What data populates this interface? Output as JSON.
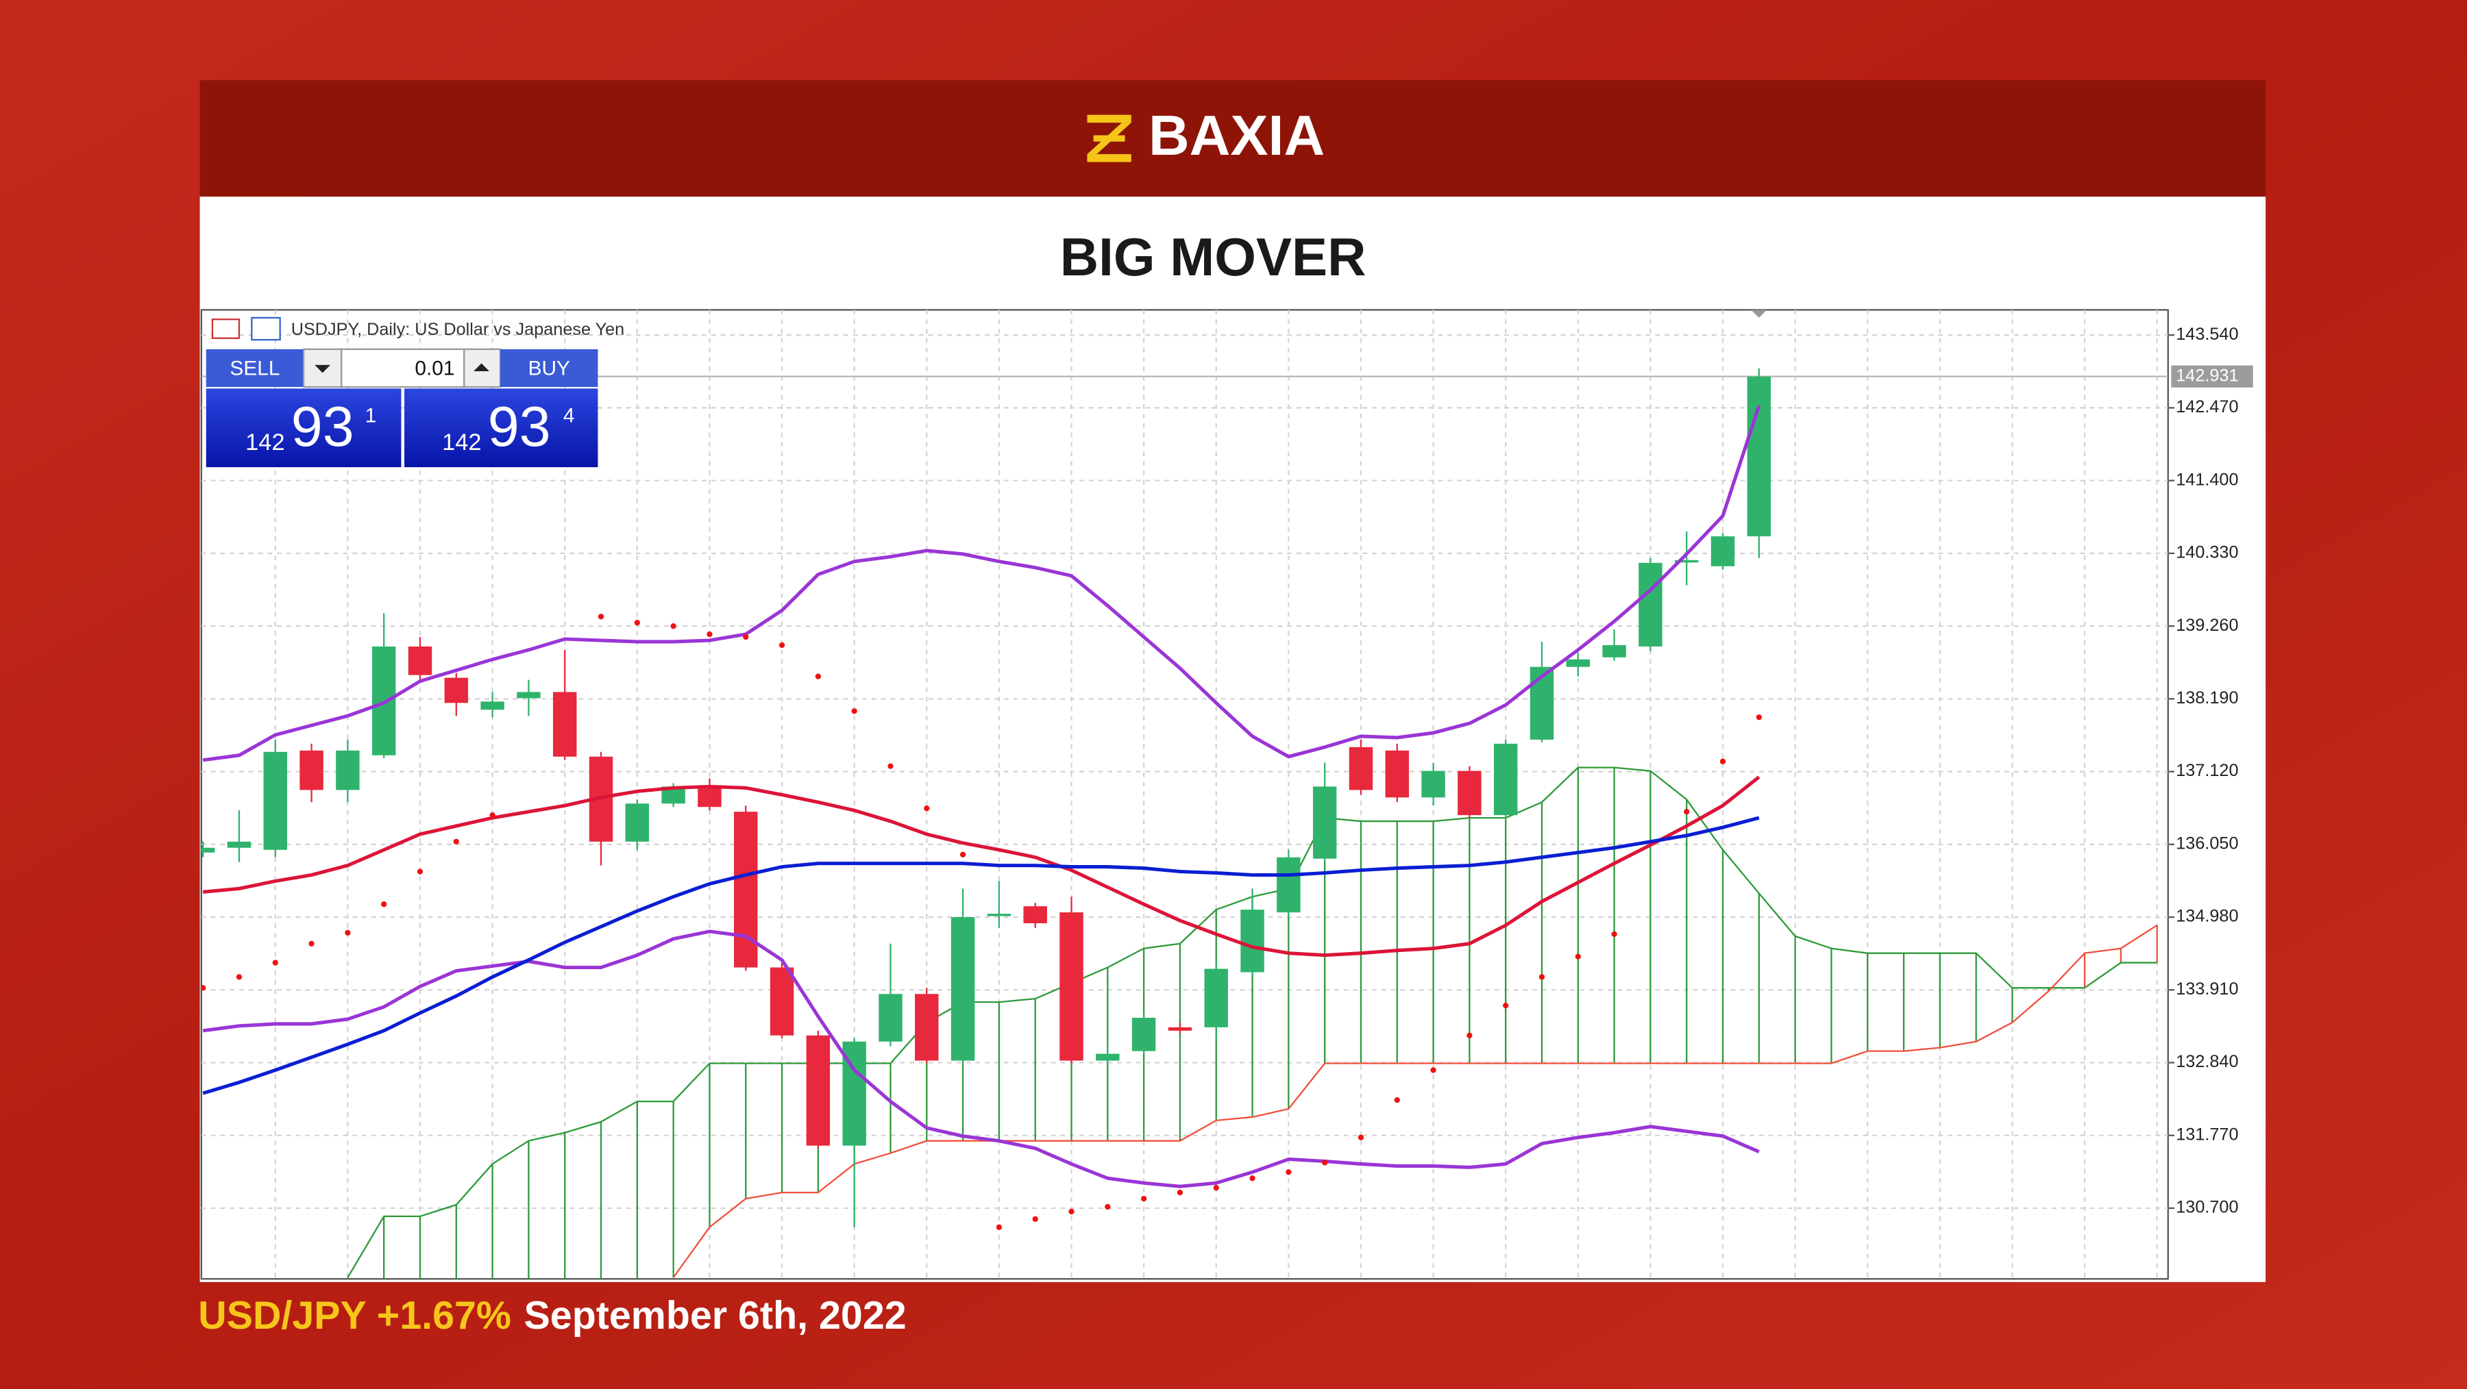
{
  "page": {
    "logo": "BAXIA",
    "title": "BIG MOVER",
    "caption_pair": "USD/JPY +1.67%",
    "caption_date": "September 6th, 2022"
  },
  "trade_panel": {
    "sell": "SELL",
    "lot": "0.01",
    "buy": "BUY",
    "bid": [
      "142",
      "93",
      "1"
    ],
    "ask": [
      "142",
      "93",
      "4"
    ]
  },
  "chart_data": {
    "type": "candlestick",
    "title": "USDJPY, Daily:  US Dollar vs Japanese Yen",
    "up_color": "#2fb36c",
    "down_color": "#e8283c",
    "open": [
      135.93,
      136.0,
      135.97,
      137.43,
      136.85,
      137.36,
      138.96,
      138.5,
      138.03,
      138.2,
      138.29,
      137.34,
      136.09,
      136.65,
      136.9,
      136.53,
      134.24,
      133.24,
      131.62,
      133.15,
      133.85,
      132.87,
      135.0,
      135.14,
      135.05,
      132.87,
      133.01,
      133.36,
      133.36,
      134.17,
      135.05,
      135.84,
      137.48,
      137.43,
      136.74,
      137.13,
      136.48,
      137.59,
      138.66,
      138.8,
      138.96,
      140.21,
      140.14,
      140.58
    ],
    "high": [
      136.09,
      136.55,
      137.59,
      137.53,
      137.59,
      139.45,
      139.1,
      138.57,
      138.29,
      138.47,
      138.91,
      137.41,
      136.71,
      136.95,
      137.02,
      136.62,
      134.31,
      133.31,
      133.2,
      134.59,
      133.94,
      135.4,
      135.51,
      135.19,
      135.28,
      133.08,
      133.55,
      133.43,
      134.31,
      135.4,
      135.97,
      137.25,
      137.59,
      137.53,
      137.25,
      137.2,
      137.59,
      139.03,
      138.87,
      139.21,
      140.26,
      140.65,
      140.63,
      143.05
    ],
    "low": [
      135.86,
      135.79,
      135.86,
      136.67,
      136.67,
      137.32,
      138.47,
      137.94,
      137.92,
      137.94,
      137.29,
      135.74,
      135.97,
      136.6,
      136.55,
      134.19,
      133.2,
      131.58,
      130.42,
      133.08,
      132.83,
      132.83,
      134.82,
      134.82,
      132.83,
      132.83,
      132.97,
      133.27,
      133.2,
      134.12,
      134.98,
      135.79,
      136.78,
      136.67,
      136.62,
      136.44,
      136.41,
      137.55,
      138.52,
      138.75,
      138.89,
      139.86,
      140.09,
      140.26
    ],
    "close": [
      136.0,
      136.09,
      137.41,
      136.85,
      137.43,
      138.96,
      138.54,
      138.13,
      138.15,
      138.29,
      137.34,
      136.09,
      136.65,
      136.9,
      136.6,
      134.24,
      133.24,
      131.62,
      133.15,
      133.85,
      132.87,
      134.98,
      135.03,
      134.89,
      132.87,
      132.97,
      133.5,
      133.31,
      134.22,
      135.09,
      135.86,
      136.9,
      136.85,
      136.74,
      137.13,
      136.48,
      137.53,
      138.66,
      138.77,
      138.98,
      140.19,
      140.23,
      140.58,
      142.93
    ],
    "overlays": [
      {
        "color": "#9a35d6",
        "width": 2.2,
        "values": [
          137.29,
          137.36,
          137.66,
          137.8,
          137.94,
          138.13,
          138.45,
          138.61,
          138.77,
          138.91,
          139.07,
          139.05,
          139.03,
          139.03,
          139.05,
          139.14,
          139.49,
          140.02,
          140.21,
          140.28,
          140.37,
          140.32,
          140.21,
          140.12,
          140.0,
          139.56,
          139.1,
          138.64,
          138.13,
          137.64,
          137.34,
          137.48,
          137.64,
          137.62,
          137.69,
          137.83,
          138.1,
          138.52,
          138.91,
          139.33,
          139.79,
          140.32,
          140.88,
          142.5
        ]
      },
      {
        "color": "#9a35d6",
        "width": 2.2,
        "values": [
          133.31,
          133.38,
          133.41,
          133.41,
          133.48,
          133.66,
          133.96,
          134.19,
          134.26,
          134.33,
          134.24,
          134.24,
          134.42,
          134.66,
          134.77,
          134.7,
          134.35,
          133.52,
          132.73,
          132.27,
          131.88,
          131.76,
          131.69,
          131.58,
          131.35,
          131.14,
          131.07,
          131.02,
          131.07,
          131.23,
          131.42,
          131.39,
          131.35,
          131.32,
          131.32,
          131.3,
          131.35,
          131.65,
          131.74,
          131.81,
          131.9,
          131.83,
          131.76,
          131.53
        ]
      },
      {
        "color": "#dc1438",
        "width": 2.2,
        "values": [
          135.35,
          135.4,
          135.51,
          135.6,
          135.74,
          135.97,
          136.2,
          136.32,
          136.44,
          136.53,
          136.62,
          136.74,
          136.83,
          136.88,
          136.9,
          136.88,
          136.78,
          136.67,
          136.55,
          136.39,
          136.2,
          136.07,
          135.97,
          135.86,
          135.67,
          135.42,
          135.17,
          134.93,
          134.73,
          134.54,
          134.45,
          134.42,
          134.45,
          134.49,
          134.52,
          134.59,
          134.86,
          135.21,
          135.49,
          135.77,
          136.04,
          136.32,
          136.62,
          137.04
        ]
      },
      {
        "color": "#0a1ed2",
        "width": 2.2,
        "values": [
          132.39,
          132.55,
          132.73,
          132.92,
          133.11,
          133.31,
          133.57,
          133.82,
          134.1,
          134.35,
          134.61,
          134.84,
          135.07,
          135.28,
          135.47,
          135.6,
          135.72,
          135.77,
          135.77,
          135.77,
          135.77,
          135.77,
          135.74,
          135.74,
          135.72,
          135.72,
          135.7,
          135.65,
          135.63,
          135.6,
          135.6,
          135.63,
          135.67,
          135.7,
          135.72,
          135.74,
          135.79,
          135.86,
          135.93,
          136.0,
          136.09,
          136.18,
          136.3,
          136.44
        ]
      }
    ],
    "sar": {
      "color": "#ee1111",
      "values": [
        133.94,
        134.1,
        134.31,
        134.59,
        134.75,
        135.17,
        135.65,
        136.09,
        136.48,
        null,
        null,
        139.4,
        139.31,
        139.26,
        139.14,
        139.1,
        138.98,
        138.52,
        138.01,
        137.2,
        136.58,
        135.9,
        130.42,
        130.54,
        130.65,
        130.72,
        130.84,
        130.93,
        131.0,
        131.14,
        131.23,
        131.37,
        131.74,
        132.29,
        132.73,
        133.24,
        133.68,
        134.1,
        134.4,
        134.73,
        null,
        136.53,
        137.27,
        137.92
      ]
    },
    "cloud": {
      "span_a": {
        "color": "#2e9a3a",
        "values": [
          null,
          null,
          null,
          null,
          129.68,
          130.58,
          130.58,
          130.75,
          131.35,
          131.69,
          131.81,
          131.97,
          132.27,
          132.27,
          132.83,
          132.83,
          132.83,
          132.83,
          132.83,
          132.83,
          133.43,
          133.73,
          133.73,
          133.78,
          134.01,
          134.24,
          134.52,
          134.59,
          135.09,
          135.28,
          135.4,
          136.44,
          136.39,
          136.39,
          136.39,
          136.44,
          136.44,
          136.67,
          137.18,
          137.18,
          137.13,
          136.71,
          135.97,
          135.33,
          134.7,
          134.52,
          134.45,
          134.45,
          134.45,
          134.45,
          133.94,
          133.94,
          133.94,
          134.31,
          134.31
        ]
      },
      "span_b": {
        "color": "#f0503c",
        "values": [
          null,
          null,
          null,
          null,
          null,
          null,
          null,
          null,
          null,
          null,
          null,
          null,
          null,
          129.68,
          130.42,
          130.84,
          130.93,
          130.93,
          131.35,
          131.51,
          131.69,
          131.69,
          131.69,
          131.69,
          131.69,
          131.69,
          131.69,
          131.69,
          131.99,
          132.04,
          132.16,
          132.83,
          132.83,
          132.83,
          132.83,
          132.83,
          132.83,
          132.83,
          132.83,
          132.83,
          132.83,
          132.83,
          132.83,
          132.83,
          132.83,
          132.83,
          133.01,
          133.01,
          133.06,
          133.15,
          133.43,
          133.89,
          134.45,
          134.52,
          134.86
        ]
      }
    },
    "last": {
      "value": 142.931,
      "label": "142.931"
    },
    "ylim": [
      129.66,
      143.91
    ],
    "yticks": [
      {
        "value": 143.54,
        "label": "143.540"
      },
      {
        "value": 142.47,
        "label": "142.470"
      },
      {
        "value": 141.4,
        "label": "141.400"
      },
      {
        "value": 140.33,
        "label": "140.330"
      },
      {
        "value": 139.26,
        "label": "139.260"
      },
      {
        "value": 138.19,
        "label": "138.190"
      },
      {
        "value": 137.12,
        "label": "137.120"
      },
      {
        "value": 136.05,
        "label": "136.050"
      },
      {
        "value": 134.98,
        "label": "134.980"
      },
      {
        "value": 133.91,
        "label": "133.910"
      },
      {
        "value": 132.84,
        "label": "132.840"
      },
      {
        "value": 131.77,
        "label": "131.770"
      },
      {
        "value": 130.7,
        "label": "130.700"
      }
    ],
    "grid": true
  }
}
